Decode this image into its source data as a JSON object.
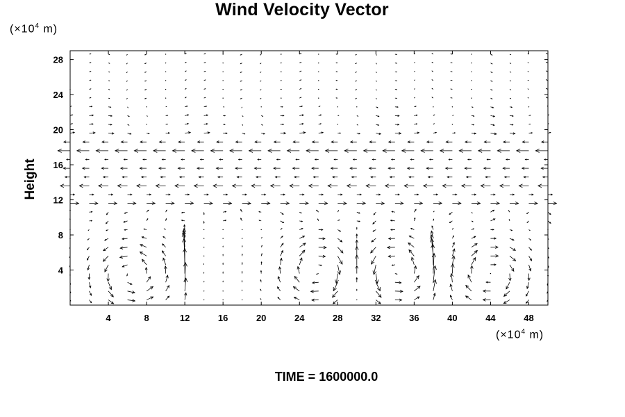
{
  "chart_data": {
    "type": "vector_field",
    "title": "Wind Velocity Vector",
    "ylabel": "Height",
    "y_unit": {
      "prefix": "(×10",
      "exp": "4",
      "suffix": " m)"
    },
    "x_unit": {
      "prefix": "(×10",
      "exp": "4",
      "suffix": " m)"
    },
    "xlim": [
      0,
      50
    ],
    "ylim": [
      0,
      29
    ],
    "x_ticks": [
      4,
      8,
      12,
      16,
      20,
      24,
      28,
      32,
      36,
      40,
      44,
      48
    ],
    "y_ticks": [
      4,
      8,
      12,
      16,
      20,
      24,
      28
    ],
    "grid": {
      "dx": 2,
      "dy": 2
    },
    "field": {
      "upper_flow": [
        {
          "y": 18,
          "u": -1.0
        },
        {
          "y": 16,
          "u": -0.55
        },
        {
          "y": 14,
          "u": -0.8
        },
        {
          "y": 12,
          "u": 0.7
        },
        {
          "y": 20,
          "u": 0.35
        },
        {
          "y": 22,
          "u": 0.2
        }
      ],
      "vortices": [
        {
          "x": 6.5,
          "y": 3.5,
          "direction": "counterclockwise"
        },
        {
          "x": 26,
          "y": 4,
          "direction": "clockwise"
        },
        {
          "x": 34,
          "y": 4,
          "direction": "counterclockwise"
        },
        {
          "x": 44,
          "y": 3.5,
          "direction": "clockwise"
        }
      ],
      "updrafts": [
        12,
        17,
        30,
        38.5
      ]
    },
    "time_label": "TIME = 1600000.0"
  }
}
